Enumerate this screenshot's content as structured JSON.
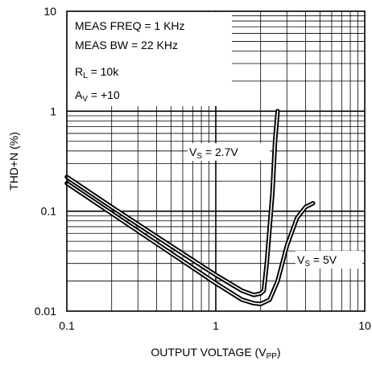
{
  "chart_data": {
    "type": "line",
    "title": "",
    "xlabel": "OUTPUT VOLTAGE (V",
    "xlabel_sub": "PP",
    "xlabel_end": ")",
    "ylabel": "THD+N (%)",
    "xscale": "log",
    "yscale": "log",
    "xlim": [
      0.1,
      10
    ],
    "ylim": [
      0.01,
      10
    ],
    "grid": true,
    "x_ticks": [
      "0.1",
      "1",
      "10"
    ],
    "y_ticks": [
      "10",
      "1",
      "0.1",
      "0.01"
    ],
    "conditions": [
      {
        "text": "MEAS FREQ = 1 KHz"
      },
      {
        "text": "MEAS BW = 22 KHz"
      },
      {
        "main": "R",
        "sub": "L",
        "rest": " = 10k"
      },
      {
        "main": "A",
        "sub": "V",
        "rest": " = +10"
      }
    ],
    "series": [
      {
        "name": "VS = 2.7V",
        "label_main": "V",
        "label_sub": "S",
        "label_rest": " = 2.7V",
        "x": [
          0.1,
          0.2,
          0.5,
          1.0,
          1.5,
          1.8,
          2.0,
          2.1,
          2.2,
          2.4,
          2.5,
          2.6
        ],
        "y": [
          0.22,
          0.11,
          0.045,
          0.023,
          0.016,
          0.0145,
          0.015,
          0.016,
          0.03,
          0.15,
          0.5,
          1.0
        ]
      },
      {
        "name": "VS = 5V",
        "label_main": "V",
        "label_sub": "S",
        "label_rest": " = 5V",
        "x": [
          0.1,
          0.2,
          0.5,
          1.0,
          1.5,
          1.8,
          2.0,
          2.3,
          2.6,
          3.0,
          3.5,
          4.0,
          4.5
        ],
        "y": [
          0.19,
          0.095,
          0.038,
          0.019,
          0.013,
          0.012,
          0.0118,
          0.013,
          0.02,
          0.045,
          0.085,
          0.11,
          0.12
        ]
      }
    ]
  }
}
